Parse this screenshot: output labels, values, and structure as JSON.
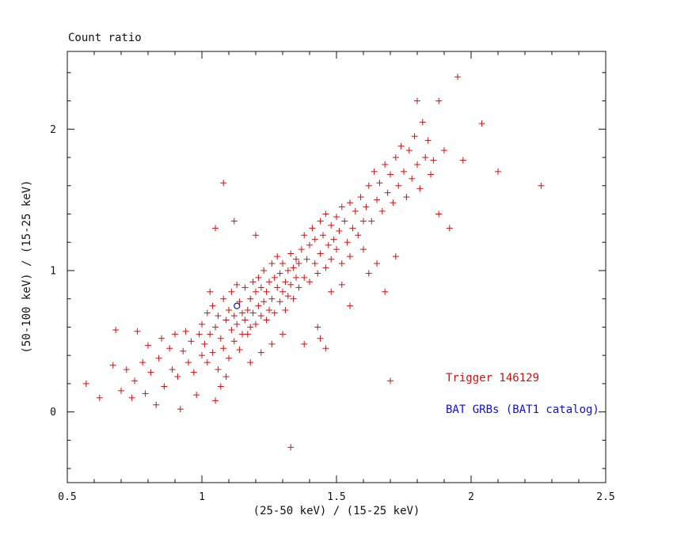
{
  "legend": {
    "trigger": {
      "label": "Trigger 146129",
      "color": "#cc1111"
    },
    "catalog": {
      "label": "BAT GRBs (BAT1 catalog)",
      "color": "#1111cc"
    }
  },
  "colors": {
    "frame": "#111111",
    "red_marker": "#cc1111",
    "blue_marker": "#1111cc",
    "background": "#ffffff"
  },
  "chart_data": {
    "type": "scatter",
    "title": "Count ratio",
    "xlabel": "(25-50 keV) / (15-25 keV)",
    "ylabel": "(50-100 keV) / (15-25 keV)",
    "xlim": [
      0.5,
      2.5
    ],
    "ylim": [
      -0.5,
      2.55
    ],
    "grid": false,
    "legend_position": "lower right",
    "x_tick_values": [
      0.5,
      1,
      1.5,
      2,
      2.5
    ],
    "x_tick_labels": [
      "0.5",
      "1",
      "1.5",
      "2",
      "2.5"
    ],
    "x_minor_step": 0.1,
    "y_tick_values": [
      0,
      1,
      2
    ],
    "y_tick_labels": [
      "0",
      "1",
      "2"
    ],
    "y_minor_step": 0.2,
    "series": [
      {
        "name": "Trigger 146129",
        "marker": "plus",
        "color": "#cc1111",
        "points": [
          [
            0.57,
            0.2
          ],
          [
            0.62,
            0.1
          ],
          [
            0.67,
            0.33
          ],
          [
            0.68,
            0.58
          ],
          [
            0.7,
            0.15
          ],
          [
            0.72,
            0.3
          ],
          [
            0.74,
            0.1
          ],
          [
            0.75,
            0.22
          ],
          [
            0.76,
            0.57
          ],
          [
            0.78,
            0.35
          ],
          [
            0.79,
            0.13
          ],
          [
            0.8,
            0.47
          ],
          [
            0.81,
            0.28
          ],
          [
            0.83,
            0.05
          ],
          [
            0.84,
            0.38
          ],
          [
            0.85,
            0.52
          ],
          [
            0.86,
            0.18
          ],
          [
            0.88,
            0.45
          ],
          [
            0.89,
            0.3
          ],
          [
            0.9,
            0.55
          ],
          [
            0.91,
            0.25
          ],
          [
            0.92,
            0.02
          ],
          [
            0.93,
            0.43
          ],
          [
            0.94,
            0.57
          ],
          [
            0.95,
            0.35
          ],
          [
            0.96,
            0.5
          ],
          [
            0.97,
            0.28
          ],
          [
            0.98,
            0.12
          ],
          [
            0.99,
            0.55
          ],
          [
            1.0,
            0.4
          ],
          [
            1.0,
            0.62
          ],
          [
            1.01,
            0.48
          ],
          [
            1.02,
            0.7
          ],
          [
            1.02,
            0.35
          ],
          [
            1.03,
            0.55
          ],
          [
            1.04,
            0.42
          ],
          [
            1.04,
            0.75
          ],
          [
            1.05,
            0.6
          ],
          [
            1.06,
            0.3
          ],
          [
            1.06,
            0.68
          ],
          [
            1.07,
            0.52
          ],
          [
            1.08,
            0.8
          ],
          [
            1.08,
            0.45
          ],
          [
            1.09,
            0.65
          ],
          [
            1.1,
            0.38
          ],
          [
            1.1,
            0.72
          ],
          [
            1.11,
            0.58
          ],
          [
            1.11,
            0.85
          ],
          [
            1.12,
            0.5
          ],
          [
            1.12,
            0.68
          ],
          [
            1.13,
            0.62
          ],
          [
            1.14,
            0.78
          ],
          [
            1.14,
            0.44
          ],
          [
            1.15,
            0.7
          ],
          [
            1.15,
            0.55
          ],
          [
            1.05,
            0.08
          ],
          [
            1.07,
            0.18
          ],
          [
            1.13,
            0.9
          ],
          [
            1.09,
            0.25
          ],
          [
            1.03,
            0.85
          ],
          [
            1.05,
            1.3
          ],
          [
            1.08,
            1.62
          ],
          [
            1.12,
            1.35
          ],
          [
            1.16,
            0.65
          ],
          [
            1.16,
            0.88
          ],
          [
            1.17,
            0.72
          ],
          [
            1.17,
            0.55
          ],
          [
            1.18,
            0.8
          ],
          [
            1.18,
            0.6
          ],
          [
            1.19,
            0.92
          ],
          [
            1.19,
            0.7
          ],
          [
            1.2,
            0.85
          ],
          [
            1.2,
            0.62
          ],
          [
            1.21,
            0.75
          ],
          [
            1.21,
            0.95
          ],
          [
            1.22,
            0.68
          ],
          [
            1.22,
            0.88
          ],
          [
            1.23,
            0.78
          ],
          [
            1.23,
            1.0
          ],
          [
            1.24,
            0.85
          ],
          [
            1.24,
            0.65
          ],
          [
            1.25,
            0.92
          ],
          [
            1.25,
            0.72
          ],
          [
            1.26,
            1.05
          ],
          [
            1.26,
            0.8
          ],
          [
            1.27,
            0.95
          ],
          [
            1.27,
            0.7
          ],
          [
            1.28,
            0.88
          ],
          [
            1.28,
            1.1
          ],
          [
            1.29,
            0.78
          ],
          [
            1.29,
            0.98
          ],
          [
            1.3,
            0.85
          ],
          [
            1.3,
            1.05
          ],
          [
            1.31,
            0.92
          ],
          [
            1.31,
            0.72
          ],
          [
            1.32,
            1.0
          ],
          [
            1.32,
            0.82
          ],
          [
            1.33,
            1.12
          ],
          [
            1.33,
            0.9
          ],
          [
            1.34,
            1.02
          ],
          [
            1.34,
            0.8
          ],
          [
            1.35,
            1.08
          ],
          [
            1.35,
            0.95
          ],
          [
            1.18,
            0.35
          ],
          [
            1.22,
            0.42
          ],
          [
            1.26,
            0.48
          ],
          [
            1.3,
            0.55
          ],
          [
            1.2,
            1.25
          ],
          [
            1.36,
            1.05
          ],
          [
            1.36,
            0.88
          ],
          [
            1.37,
            1.15
          ],
          [
            1.38,
            0.95
          ],
          [
            1.38,
            1.25
          ],
          [
            1.39,
            1.08
          ],
          [
            1.4,
            0.92
          ],
          [
            1.4,
            1.18
          ],
          [
            1.41,
            1.3
          ],
          [
            1.42,
            1.05
          ],
          [
            1.42,
            1.22
          ],
          [
            1.43,
            0.98
          ],
          [
            1.44,
            1.35
          ],
          [
            1.44,
            1.12
          ],
          [
            1.45,
            1.25
          ],
          [
            1.46,
            1.02
          ],
          [
            1.46,
            1.4
          ],
          [
            1.47,
            1.18
          ],
          [
            1.48,
            1.32
          ],
          [
            1.48,
            1.08
          ],
          [
            1.49,
            1.22
          ],
          [
            1.5,
            1.38
          ],
          [
            1.5,
            1.15
          ],
          [
            1.51,
            1.28
          ],
          [
            1.52,
            1.45
          ],
          [
            1.52,
            1.05
          ],
          [
            1.53,
            1.35
          ],
          [
            1.54,
            1.2
          ],
          [
            1.55,
            1.48
          ],
          [
            1.55,
            1.1
          ],
          [
            1.56,
            1.3
          ],
          [
            1.57,
            1.42
          ],
          [
            1.58,
            1.25
          ],
          [
            1.59,
            1.52
          ],
          [
            1.6,
            1.35
          ],
          [
            1.6,
            1.15
          ],
          [
            1.43,
            0.6
          ],
          [
            1.46,
            0.45
          ],
          [
            1.44,
            0.52
          ],
          [
            1.38,
            0.48
          ],
          [
            1.48,
            0.85
          ],
          [
            1.52,
            0.9
          ],
          [
            1.55,
            0.75
          ],
          [
            1.61,
            1.45
          ],
          [
            1.62,
            1.6
          ],
          [
            1.63,
            1.35
          ],
          [
            1.64,
            1.7
          ],
          [
            1.65,
            1.5
          ],
          [
            1.66,
            1.62
          ],
          [
            1.67,
            1.42
          ],
          [
            1.68,
            1.75
          ],
          [
            1.69,
            1.55
          ],
          [
            1.7,
            1.68
          ],
          [
            1.71,
            1.48
          ],
          [
            1.72,
            1.8
          ],
          [
            1.73,
            1.6
          ],
          [
            1.74,
            1.88
          ],
          [
            1.75,
            1.7
          ],
          [
            1.76,
            1.52
          ],
          [
            1.77,
            1.85
          ],
          [
            1.78,
            1.65
          ],
          [
            1.79,
            1.95
          ],
          [
            1.8,
            1.75
          ],
          [
            1.81,
            1.58
          ],
          [
            1.82,
            2.05
          ],
          [
            1.83,
            1.8
          ],
          [
            1.84,
            1.92
          ],
          [
            1.85,
            1.68
          ],
          [
            1.62,
            0.98
          ],
          [
            1.65,
            1.05
          ],
          [
            1.7,
            0.22
          ],
          [
            1.68,
            0.85
          ],
          [
            1.72,
            1.1
          ],
          [
            1.86,
            1.78
          ],
          [
            1.88,
            2.2
          ],
          [
            1.9,
            1.85
          ],
          [
            1.92,
            1.3
          ],
          [
            1.95,
            2.37
          ],
          [
            1.97,
            1.78
          ],
          [
            2.04,
            2.04
          ],
          [
            2.1,
            1.7
          ],
          [
            2.26,
            1.6
          ],
          [
            1.88,
            1.4
          ],
          [
            1.33,
            -0.25
          ],
          [
            1.8,
            2.2
          ]
        ]
      },
      {
        "name": "BAT GRBs (BAT1 catalog)",
        "marker": "circle",
        "color": "#1111cc",
        "points": [
          [
            1.13,
            0.75
          ]
        ]
      }
    ]
  }
}
